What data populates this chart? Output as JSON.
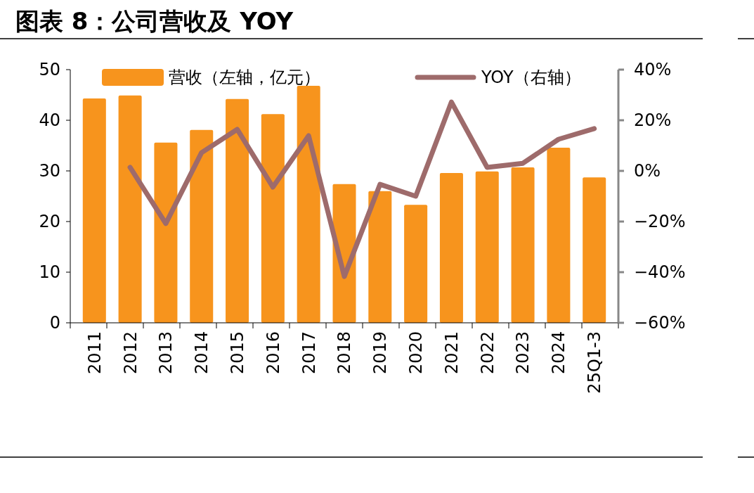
{
  "chart_data": {
    "type": "bar",
    "title": "图表 8：公司营收及 YOY",
    "categories": [
      "2011",
      "2012",
      "2013",
      "2014",
      "2015",
      "2016",
      "2017",
      "2018",
      "2019",
      "2020",
      "2021",
      "2022",
      "2023",
      "2024",
      "25Q1-3"
    ],
    "series": [
      {
        "name": "营收（左轴，亿元）",
        "color": "#f7941d",
        "values": [
          44.3,
          44.9,
          35.6,
          38.1,
          44.2,
          41.2,
          46.8,
          27.4,
          26.0,
          23.3,
          29.6,
          29.9,
          30.7,
          34.6,
          28.7
        ]
      },
      {
        "name": "YOY（右轴）",
        "type": "line",
        "axis": "y2",
        "color": "#9e6b6b",
        "values": [
          null,
          1.4,
          -20.8,
          7.2,
          16.4,
          -6.4,
          13.9,
          -41.7,
          -5.3,
          -10,
          27.2,
          1.4,
          3,
          12.5,
          16.7
        ]
      }
    ],
    "ylim": [
      0,
      50
    ],
    "yticks": [
      0,
      10,
      20,
      30,
      40,
      50
    ],
    "y2lim": [
      -60,
      40
    ],
    "y2ticks": [
      {
        "value": -60,
        "label": "−60%"
      },
      {
        "value": -40,
        "label": "−40%"
      },
      {
        "value": -20,
        "label": "−20%"
      },
      {
        "value": 0,
        "label": "0%"
      },
      {
        "value": 20,
        "label": "20%"
      },
      {
        "value": 40,
        "label": "40%"
      }
    ],
    "legend": "top",
    "grid": false
  }
}
